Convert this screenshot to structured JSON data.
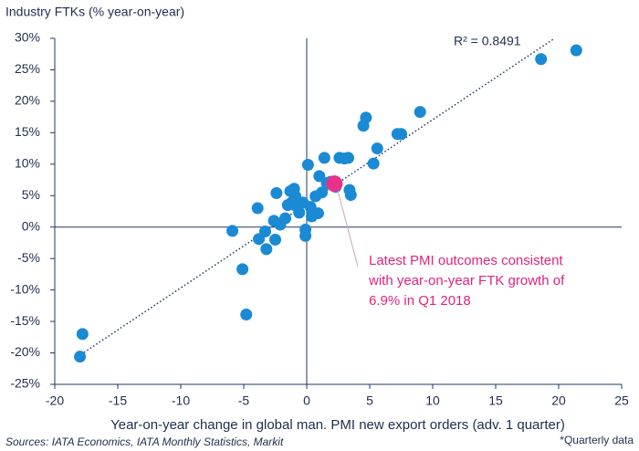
{
  "chart_data": {
    "type": "scatter",
    "title": "Industry FTKs (% year-on-year)",
    "x_label": "Year-on-year change in global man. PMI new export orders (adv. 1 quarter)",
    "source": "Sources: IATA Economics, IATA Monthly Statistics, Markit",
    "footnote": "*Quarterly data",
    "r_squared_label": "R² = 0.8491",
    "annotation": [
      "Latest PMI outcomes consistent",
      "with year-on-year FTK growth of",
      "6.9% in Q1 2018"
    ],
    "xlim": [
      -20,
      25
    ],
    "xticks": [
      -20,
      -15,
      -10,
      -5,
      0,
      5,
      10,
      15,
      20,
      25
    ],
    "ylim": [
      -25,
      30
    ],
    "yticks": [
      {
        "value": -25,
        "label": "-25%"
      },
      {
        "value": -20,
        "label": "-20%"
      },
      {
        "value": -15,
        "label": "-15%"
      },
      {
        "value": -10,
        "label": "-10%"
      },
      {
        "value": -5,
        "label": "-5%"
      },
      {
        "value": 0,
        "label": "0%"
      },
      {
        "value": 5,
        "label": "5%"
      },
      {
        "value": 10,
        "label": "10%"
      },
      {
        "value": 15,
        "label": "15%"
      },
      {
        "value": 20,
        "label": "20%"
      },
      {
        "value": 25,
        "label": "25%"
      },
      {
        "value": 30,
        "label": "30%"
      }
    ],
    "grid": false,
    "series": [
      {
        "color": "#1a8ad4",
        "x": [
          -18.0,
          -17.8,
          -5.9,
          -5.1,
          -4.8,
          -3.9,
          -3.8,
          -3.3,
          -3.2,
          -2.6,
          -2.5,
          -2.4,
          -2.1,
          -1.7,
          -1.5,
          -1.3,
          -1.2,
          -1.0,
          -0.9,
          -0.8,
          -0.6,
          -0.3,
          -0.1,
          -0.1,
          0.1,
          0.3,
          0.4,
          0.7,
          0.9,
          1.0,
          1.2,
          1.4,
          1.6,
          1.9,
          2.3,
          2.6,
          3.0,
          3.3,
          3.4,
          3.5,
          4.5,
          4.7,
          5.3,
          5.6,
          7.2,
          7.5,
          9.0,
          18.6,
          21.4
        ],
        "values": [
          -20.6,
          -17.0,
          -0.6,
          -6.7,
          -13.9,
          3.0,
          -1.9,
          -0.7,
          -3.5,
          1.0,
          -2.0,
          5.4,
          0.4,
          1.4,
          3.5,
          5.7,
          3.9,
          6.1,
          4.9,
          3.3,
          2.3,
          3.9,
          -0.4,
          -1.4,
          9.9,
          3.2,
          1.7,
          4.9,
          2.2,
          8.1,
          5.5,
          11.0,
          7.0,
          7.2,
          6.4,
          11.0,
          10.9,
          11.0,
          5.9,
          5.1,
          16.1,
          17.4,
          10.1,
          12.5,
          14.8,
          14.8,
          18.3,
          26.7,
          28.1
        ]
      },
      {
        "color": "#e8318a",
        "x": [
          2.2
        ],
        "values": [
          6.9
        ]
      }
    ],
    "trendline": {
      "color": "#1f3864",
      "x": [
        -18.4,
        19.6
      ],
      "values": [
        -20.9,
        29.9
      ]
    }
  }
}
